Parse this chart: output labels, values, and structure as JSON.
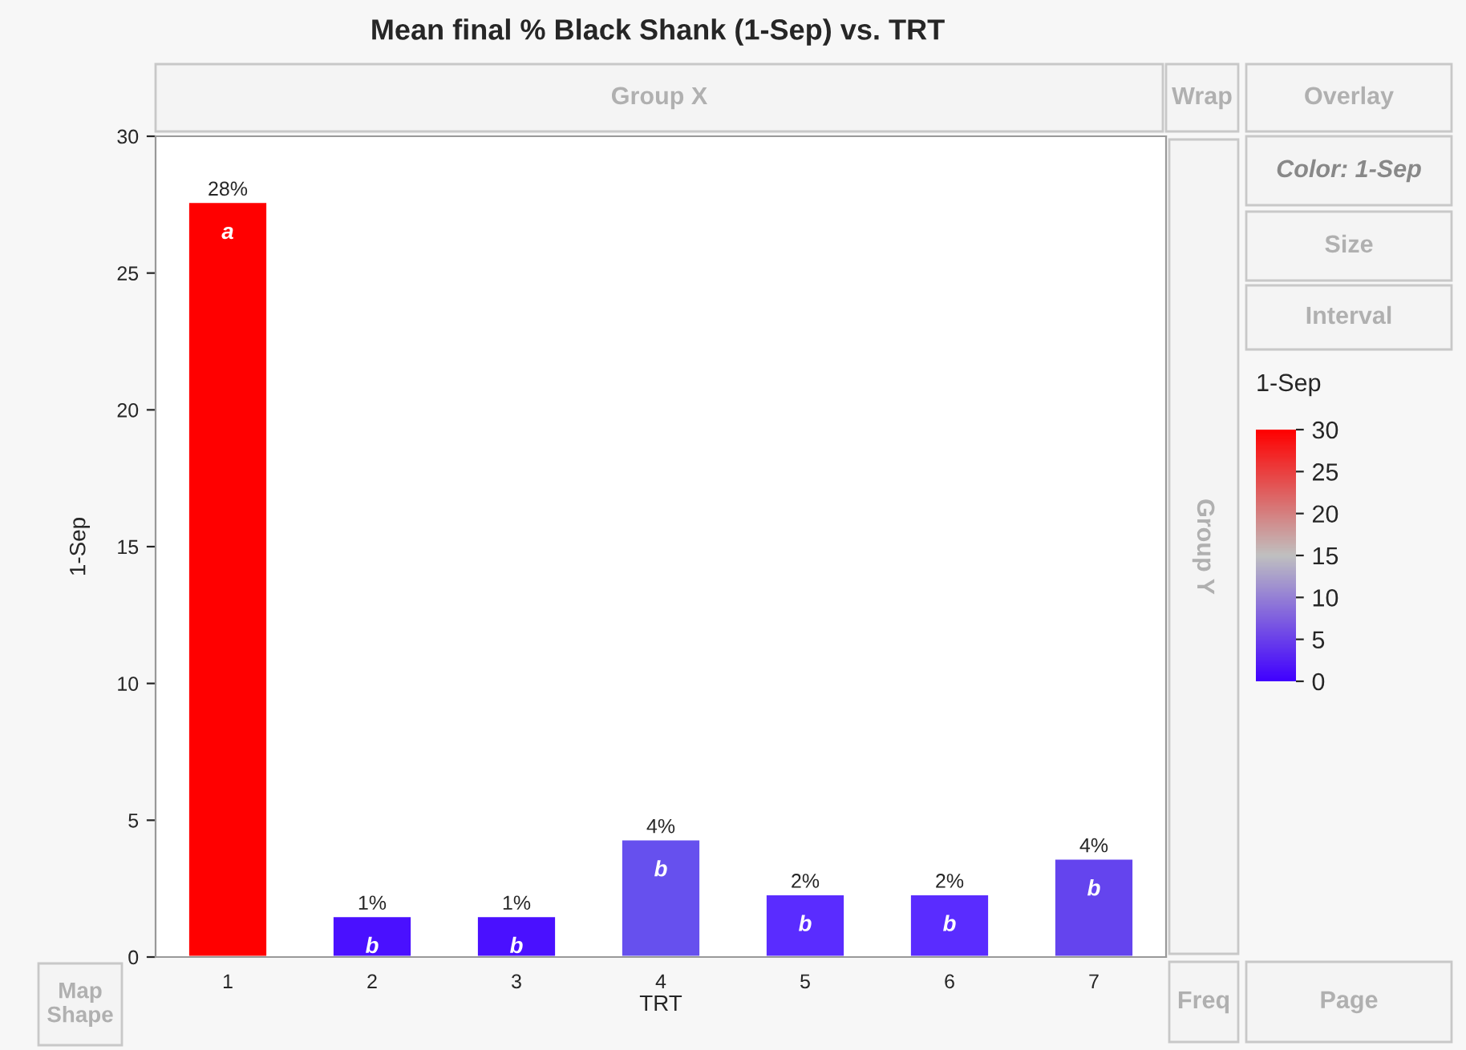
{
  "chart_data": {
    "type": "bar",
    "title": "Mean final % Black Shank (1-Sep) vs. TRT",
    "xlabel": "TRT",
    "ylabel": "1-Sep",
    "categories": [
      "1",
      "2",
      "3",
      "4",
      "5",
      "6",
      "7"
    ],
    "values": [
      27.6,
      1.5,
      1.5,
      4.3,
      2.3,
      2.3,
      3.6
    ],
    "colors": [
      "#ff0000",
      "#4a10ff",
      "#4a10ff",
      "#6650ee",
      "#5a2cff",
      "#5a2cff",
      "#6444ee"
    ],
    "value_labels": [
      "28%",
      "1%",
      "1%",
      "4%",
      "2%",
      "2%",
      "4%"
    ],
    "ylim": [
      0,
      30
    ],
    "yticks": [
      0,
      5,
      10,
      15,
      20,
      25,
      30
    ],
    "clabel": "1-Sep",
    "clim": [
      0,
      30
    ],
    "cticks": [
      0,
      5,
      10,
      15,
      20,
      25,
      30
    ],
    "grid": false,
    "legend": false,
    "annotations": [
      {
        "text": "a",
        "x": "1",
        "y": 27.6
      },
      {
        "text": "b",
        "x": "2",
        "y": 1.5
      },
      {
        "text": "b",
        "x": "3",
        "y": 1.5
      },
      {
        "text": "b",
        "x": "4",
        "y": 4.3
      },
      {
        "text": "b",
        "x": "5",
        "y": 2.3
      },
      {
        "text": "b",
        "x": "6",
        "y": 2.3
      },
      {
        "text": "b",
        "x": "7",
        "y": 3.6
      },
      "Group X",
      "Wrap",
      "Overlay",
      "Color: 1-Sep",
      "Size",
      "Interval",
      "Group Y",
      "Map Shape",
      "Freq",
      "Page"
    ]
  }
}
